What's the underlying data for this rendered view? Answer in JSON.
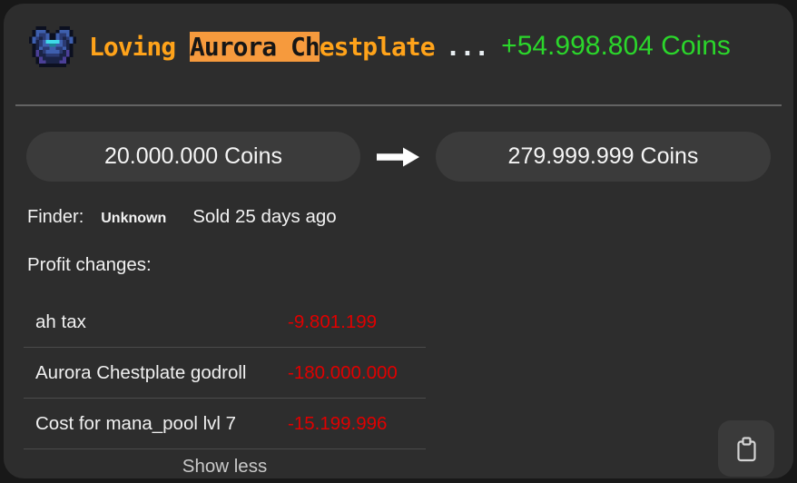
{
  "header": {
    "icon_name": "chestplate-icon",
    "title_prefix": "Loving ",
    "title_highlight": "Aurora Ch",
    "title_suffix": "estplate",
    "title_ellipsis": "...",
    "profit_text": "+54.998.804 Coins"
  },
  "prices": {
    "buy": "20.000.000 Coins",
    "sell": "279.999.999 Coins",
    "arrow_icon": "arrow-right-icon"
  },
  "meta": {
    "finder_label": "Finder:",
    "finder_value": "Unknown",
    "sold_text": "Sold 25 days ago"
  },
  "profit_changes": {
    "heading": "Profit changes:",
    "rows": [
      {
        "label": "ah tax",
        "value": "-9.801.199"
      },
      {
        "label": "Aurora Chestplate godroll",
        "value": "-180.000.000"
      },
      {
        "label": "Cost for mana_pool lvl 7",
        "value": "-15.199.996"
      }
    ],
    "toggle_label": "Show less"
  },
  "footer": {
    "copy_icon": "clipboard-icon"
  },
  "colors": {
    "card_bg": "#2d2d2d",
    "pill_bg": "#3b3b3b",
    "accent_orange": "#ffa31a",
    "highlight_bg": "#f69a3d",
    "highlight_text": "#161616",
    "profit_green": "#2bd62b",
    "loss_red": "#e00000",
    "text_white": "#f2f2f2",
    "muted_grey": "#c9c9c9"
  }
}
